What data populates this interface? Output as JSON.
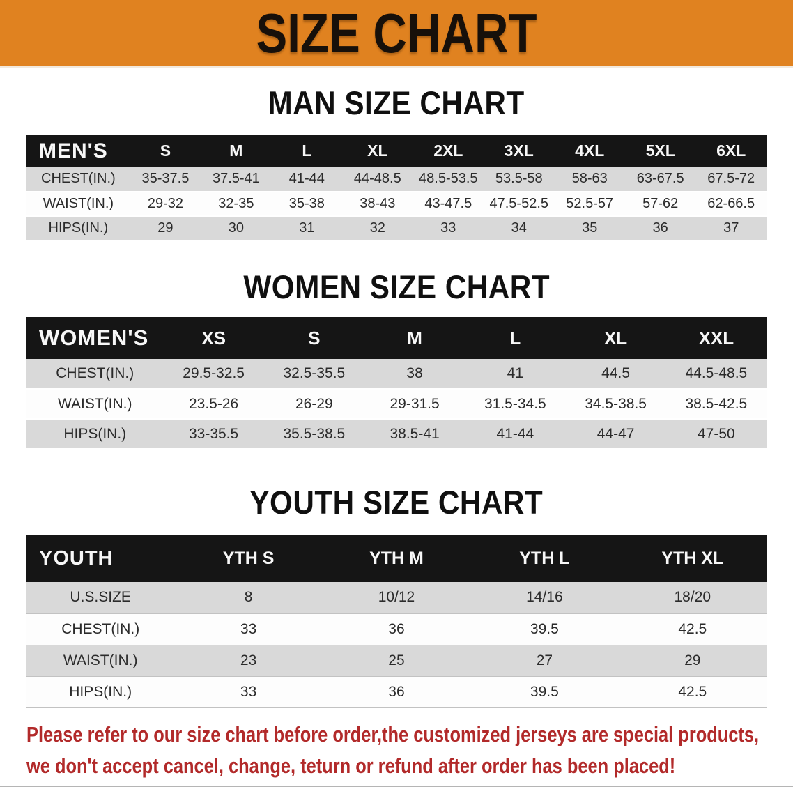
{
  "banner": {
    "title": "SIZE CHART"
  },
  "colors": {
    "banner_bg": "#E08220",
    "header_bar": "#151515",
    "stripe": "#D9D9D9",
    "disclaimer_color": "#B22A2A"
  },
  "sections": [
    {
      "heading": "MAN SIZE CHART",
      "table": {
        "corner": "MEN'S",
        "columns": [
          "S",
          "M",
          "L",
          "XL",
          "2XL",
          "3XL",
          "4XL",
          "5XL",
          "6XL"
        ],
        "rows": [
          {
            "label": "CHEST(IN.)",
            "values": [
              "35-37.5",
              "37.5-41",
              "41-44",
              "44-48.5",
              "48.5-53.5",
              "53.5-58",
              "58-63",
              "63-67.5",
              "67.5-72"
            ]
          },
          {
            "label": "WAIST(IN.)",
            "values": [
              "29-32",
              "32-35",
              "35-38",
              "38-43",
              "43-47.5",
              "47.5-52.5",
              "52.5-57",
              "57-62",
              "62-66.5"
            ]
          },
          {
            "label": "HIPS(IN.)",
            "values": [
              "29",
              "30",
              "31",
              "32",
              "33",
              "34",
              "35",
              "36",
              "37"
            ]
          }
        ]
      }
    },
    {
      "heading": "WOMEN SIZE CHART",
      "table": {
        "corner": "WOMEN'S",
        "columns": [
          "XS",
          "S",
          "M",
          "L",
          "XL",
          "XXL"
        ],
        "rows": [
          {
            "label": "CHEST(IN.)",
            "values": [
              "29.5-32.5",
              "32.5-35.5",
              "38",
              "41",
              "44.5",
              "44.5-48.5"
            ]
          },
          {
            "label": "WAIST(IN.)",
            "values": [
              "23.5-26",
              "26-29",
              "29-31.5",
              "31.5-34.5",
              "34.5-38.5",
              "38.5-42.5"
            ]
          },
          {
            "label": "HIPS(IN.)",
            "values": [
              "33-35.5",
              "35.5-38.5",
              "38.5-41",
              "41-44",
              "44-47",
              "47-50"
            ]
          }
        ]
      }
    },
    {
      "heading": "YOUTH SIZE CHART",
      "table": {
        "corner": "YOUTH",
        "columns": [
          "YTH S",
          "YTH M",
          "YTH L",
          "YTH XL"
        ],
        "rows": [
          {
            "label": "U.S.SIZE",
            "values": [
              "8",
              "10/12",
              "14/16",
              "18/20"
            ]
          },
          {
            "label": "CHEST(IN.)",
            "values": [
              "33",
              "36",
              "39.5",
              "42.5"
            ]
          },
          {
            "label": "WAIST(IN.)",
            "values": [
              "23",
              "25",
              "27",
              "29"
            ]
          },
          {
            "label": "HIPS(IN.)",
            "values": [
              "33",
              "36",
              "39.5",
              "42.5"
            ]
          }
        ]
      }
    }
  ],
  "disclaimer": {
    "line1": "Please refer to our size chart before order,the customized jerseys are special products,",
    "line2": "we don't accept cancel, change, teturn or refund after order has been placed!"
  }
}
